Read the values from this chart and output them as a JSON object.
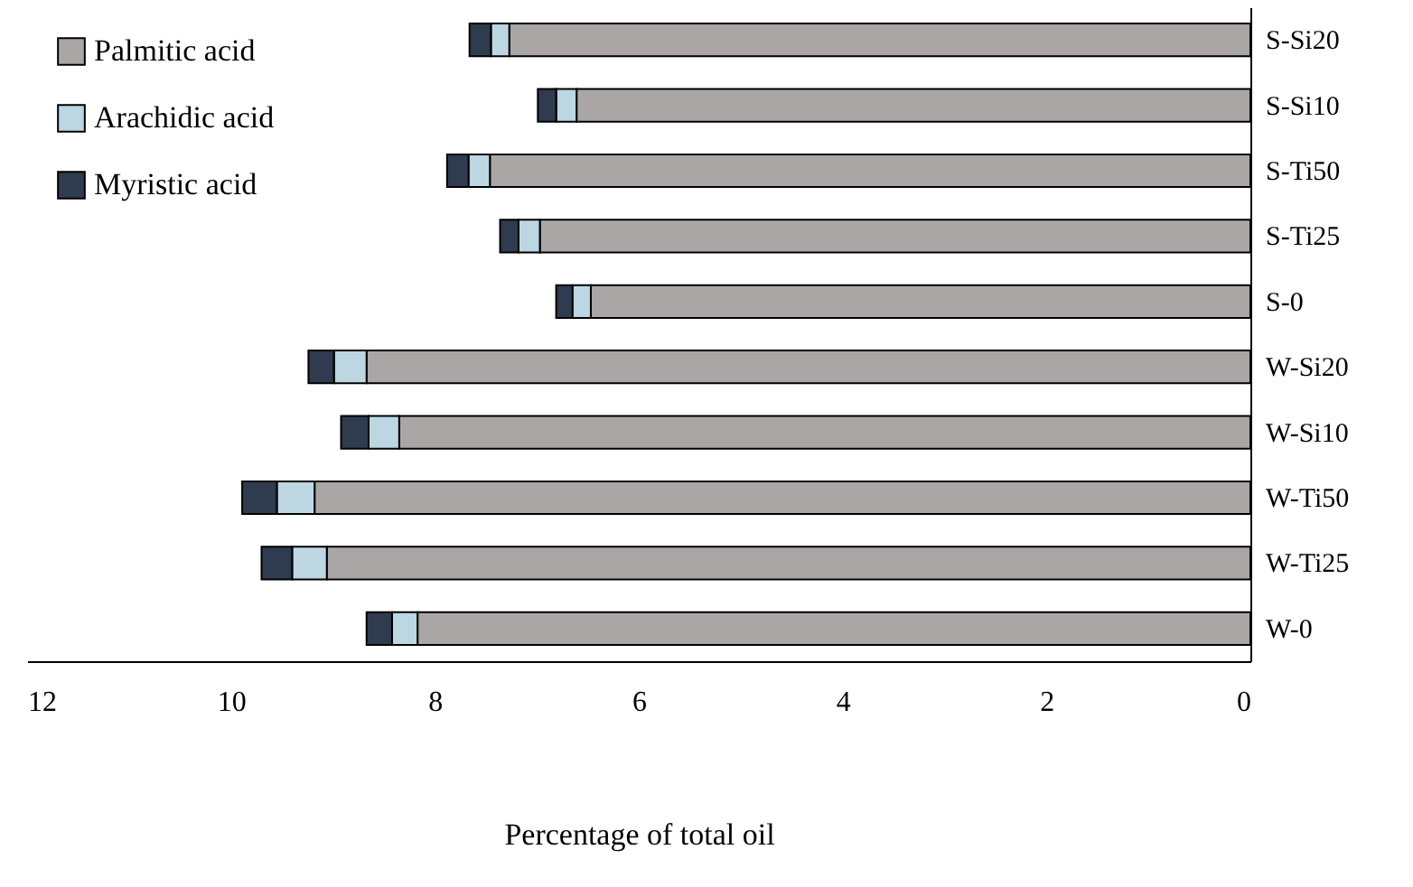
{
  "chart_data": {
    "type": "bar",
    "orientation": "horizontal",
    "stacked": true,
    "xlabel": "Percentage of total oil",
    "categories": [
      "S-Si20",
      "S-Si10",
      "S-Ti50",
      "S-Ti25",
      "S-0",
      "W-Si20",
      "W-Si10",
      "W-Ti50",
      "W-Ti25",
      "W-0"
    ],
    "series": [
      {
        "name": "Palmitic acid",
        "color": "#aaa6a6",
        "values": [
          7.27,
          6.61,
          7.46,
          6.97,
          6.47,
          8.67,
          8.35,
          9.18,
          9.06,
          8.17
        ]
      },
      {
        "name": "Arachidic acid",
        "color": "#bcd6e2",
        "values": [
          0.18,
          0.2,
          0.21,
          0.21,
          0.18,
          0.32,
          0.3,
          0.37,
          0.34,
          0.25
        ]
      },
      {
        "name": "Myristic acid",
        "color": "#2f3b4e",
        "values": [
          0.21,
          0.18,
          0.21,
          0.18,
          0.16,
          0.25,
          0.27,
          0.34,
          0.3,
          0.25
        ]
      }
    ],
    "xlim": [
      12,
      0
    ],
    "xticks": [
      12,
      10,
      8,
      6,
      4,
      2,
      0
    ],
    "grid": false,
    "legend": "top left"
  }
}
